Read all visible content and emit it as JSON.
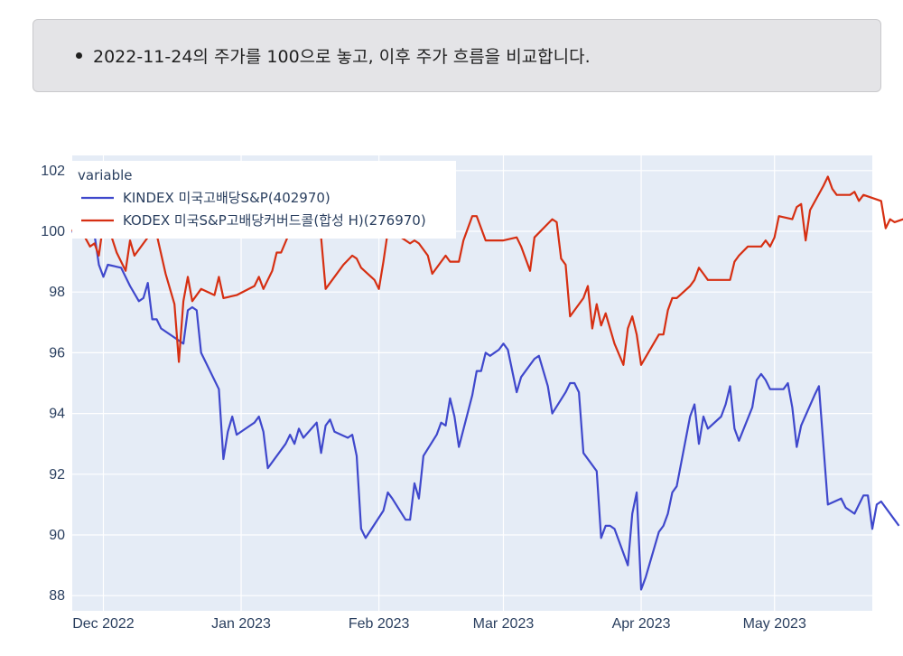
{
  "notice": {
    "text": "2022-11-24의 주가를 100으로 놓고, 이후 주가 흐름을 비교합니다."
  },
  "chart_data": {
    "type": "line",
    "title": "",
    "xlabel": "",
    "ylabel": "",
    "x_range": [
      "2022-11-24",
      "2023-05-23"
    ],
    "ylim": [
      87.5,
      102.5
    ],
    "y_ticks": [
      88,
      90,
      92,
      94,
      96,
      98,
      100,
      102
    ],
    "x_ticks": [
      {
        "date": "2022-12-01",
        "label": "Dec 2022"
      },
      {
        "date": "2023-01-01",
        "label": "Jan 2023"
      },
      {
        "date": "2023-02-01",
        "label": "Feb 2023"
      },
      {
        "date": "2023-03-01",
        "label": "Mar 2023"
      },
      {
        "date": "2023-04-01",
        "label": "Apr 2023"
      },
      {
        "date": "2023-05-01",
        "label": "May 2023"
      }
    ],
    "grid": true,
    "legend": {
      "title": "variable",
      "position": "top-left"
    },
    "series": [
      {
        "name": "KINDEX 미국고배당S&P(402970)",
        "color": "#3f48cc",
        "points": [
          [
            "2022-11-24",
            100.0
          ],
          [
            "2022-11-25",
            99.8
          ],
          [
            "2022-11-28",
            100.1
          ],
          [
            "2022-11-29",
            99.9
          ],
          [
            "2022-11-30",
            98.9
          ],
          [
            "2022-12-01",
            98.5
          ],
          [
            "2022-12-02",
            98.9
          ],
          [
            "2022-12-05",
            98.8
          ],
          [
            "2022-12-07",
            98.2
          ],
          [
            "2022-12-09",
            97.7
          ],
          [
            "2022-12-10",
            97.8
          ],
          [
            "2022-12-11",
            98.3
          ],
          [
            "2022-12-12",
            97.1
          ],
          [
            "2022-12-13",
            97.1
          ],
          [
            "2022-12-14",
            96.8
          ],
          [
            "2022-12-19",
            96.3
          ],
          [
            "2022-12-20",
            97.4
          ],
          [
            "2022-12-21",
            97.5
          ],
          [
            "2022-12-22",
            97.4
          ],
          [
            "2022-12-23",
            96.0
          ],
          [
            "2022-12-27",
            94.8
          ],
          [
            "2022-12-28",
            92.5
          ],
          [
            "2022-12-29",
            93.4
          ],
          [
            "2022-12-30",
            93.9
          ],
          [
            "2022-12-31",
            93.3
          ],
          [
            "2023-01-03",
            93.6
          ],
          [
            "2023-01-04",
            93.7
          ],
          [
            "2023-01-05",
            93.9
          ],
          [
            "2023-01-06",
            93.4
          ],
          [
            "2023-01-07",
            92.2
          ],
          [
            "2023-01-11",
            93.0
          ],
          [
            "2023-01-12",
            93.3
          ],
          [
            "2023-01-13",
            93.0
          ],
          [
            "2023-01-14",
            93.5
          ],
          [
            "2023-01-15",
            93.2
          ],
          [
            "2023-01-18",
            93.7
          ],
          [
            "2023-01-19",
            92.7
          ],
          [
            "2023-01-20",
            93.6
          ],
          [
            "2023-01-21",
            93.8
          ],
          [
            "2023-01-22",
            93.4
          ],
          [
            "2023-01-25",
            93.2
          ],
          [
            "2023-01-26",
            93.3
          ],
          [
            "2023-01-27",
            92.6
          ],
          [
            "2023-01-28",
            90.2
          ],
          [
            "2023-01-29",
            89.9
          ],
          [
            "2023-02-02",
            90.8
          ],
          [
            "2023-02-03",
            91.4
          ],
          [
            "2023-02-04",
            91.2
          ],
          [
            "2023-02-07",
            90.5
          ],
          [
            "2023-02-08",
            90.5
          ],
          [
            "2023-02-09",
            91.7
          ],
          [
            "2023-02-10",
            91.2
          ],
          [
            "2023-02-11",
            92.6
          ],
          [
            "2023-02-14",
            93.3
          ],
          [
            "2023-02-15",
            93.7
          ],
          [
            "2023-02-16",
            93.6
          ],
          [
            "2023-02-17",
            94.5
          ],
          [
            "2023-02-18",
            93.9
          ],
          [
            "2023-02-19",
            92.9
          ],
          [
            "2023-02-22",
            94.6
          ],
          [
            "2023-02-23",
            95.4
          ],
          [
            "2023-02-24",
            95.4
          ],
          [
            "2023-02-25",
            96.0
          ],
          [
            "2023-02-26",
            95.9
          ],
          [
            "2023-02-28",
            96.1
          ],
          [
            "2023-03-01",
            96.3
          ],
          [
            "2023-03-02",
            96.1
          ],
          [
            "2023-03-03",
            95.4
          ],
          [
            "2023-03-04",
            94.7
          ],
          [
            "2023-03-05",
            95.2
          ],
          [
            "2023-03-08",
            95.8
          ],
          [
            "2023-03-09",
            95.9
          ],
          [
            "2023-03-11",
            94.9
          ],
          [
            "2023-03-12",
            94.0
          ],
          [
            "2023-03-15",
            94.7
          ],
          [
            "2023-03-16",
            95.0
          ],
          [
            "2023-03-17",
            95.0
          ],
          [
            "2023-03-18",
            94.7
          ],
          [
            "2023-03-19",
            92.7
          ],
          [
            "2023-03-22",
            92.1
          ],
          [
            "2023-03-23",
            89.9
          ],
          [
            "2023-03-24",
            90.3
          ],
          [
            "2023-03-25",
            90.3
          ],
          [
            "2023-03-26",
            90.2
          ],
          [
            "2023-03-29",
            89.0
          ],
          [
            "2023-03-30",
            90.7
          ],
          [
            "2023-03-31",
            91.4
          ],
          [
            "2023-04-01",
            88.2
          ],
          [
            "2023-04-02",
            88.6
          ],
          [
            "2023-04-05",
            90.1
          ],
          [
            "2023-04-06",
            90.3
          ],
          [
            "2023-04-07",
            90.7
          ],
          [
            "2023-04-08",
            91.4
          ],
          [
            "2023-04-09",
            91.6
          ],
          [
            "2023-04-12",
            93.9
          ],
          [
            "2023-04-13",
            94.3
          ],
          [
            "2023-04-14",
            93.0
          ],
          [
            "2023-04-15",
            93.9
          ],
          [
            "2023-04-16",
            93.5
          ],
          [
            "2023-04-19",
            93.9
          ],
          [
            "2023-04-20",
            94.3
          ],
          [
            "2023-04-21",
            94.9
          ],
          [
            "2023-04-22",
            93.5
          ],
          [
            "2023-04-23",
            93.1
          ],
          [
            "2023-04-26",
            94.2
          ],
          [
            "2023-04-27",
            95.1
          ],
          [
            "2023-04-28",
            95.3
          ],
          [
            "2023-04-29",
            95.1
          ],
          [
            "2023-04-30",
            94.8
          ],
          [
            "2023-05-03",
            94.8
          ],
          [
            "2023-05-04",
            95.0
          ],
          [
            "2023-05-05",
            94.2
          ],
          [
            "2023-05-06",
            92.9
          ],
          [
            "2023-05-07",
            93.6
          ],
          [
            "2023-05-10",
            94.6
          ],
          [
            "2023-05-11",
            94.9
          ],
          [
            "2023-05-13",
            91.0
          ],
          [
            "2023-05-16",
            91.2
          ],
          [
            "2023-05-17",
            90.9
          ],
          [
            "2023-05-18",
            90.8
          ],
          [
            "2023-05-19",
            90.7
          ],
          [
            "2023-05-21",
            91.3
          ],
          [
            "2023-05-22",
            91.3
          ],
          [
            "2023-05-23",
            90.2
          ],
          [
            "2023-05-24",
            91.0
          ],
          [
            "2023-05-25",
            91.1
          ],
          [
            "2023-05-28",
            90.5
          ],
          [
            "2023-05-29",
            90.3
          ]
        ]
      },
      {
        "name": "KODEX 미국S&P고배당커버드콜(합성 H)(276970)",
        "color": "#d62f12",
        "points": [
          [
            "2022-11-24",
            100.0
          ],
          [
            "2022-11-25",
            100.3
          ],
          [
            "2022-11-28",
            99.5
          ],
          [
            "2022-11-29",
            99.6
          ],
          [
            "2022-11-30",
            99.2
          ],
          [
            "2022-12-01",
            100.3
          ],
          [
            "2022-12-02",
            100.2
          ],
          [
            "2022-12-04",
            99.3
          ],
          [
            "2022-12-06",
            98.7
          ],
          [
            "2022-12-07",
            99.7
          ],
          [
            "2022-12-08",
            99.2
          ],
          [
            "2022-12-12",
            100.0
          ],
          [
            "2022-12-13",
            99.9
          ],
          [
            "2022-12-15",
            98.6
          ],
          [
            "2022-12-17",
            97.6
          ],
          [
            "2022-12-18",
            95.7
          ],
          [
            "2022-12-19",
            97.7
          ],
          [
            "2022-12-20",
            98.5
          ],
          [
            "2022-12-21",
            97.7
          ],
          [
            "2022-12-23",
            98.1
          ],
          [
            "2022-12-26",
            97.9
          ],
          [
            "2022-12-27",
            98.5
          ],
          [
            "2022-12-28",
            97.8
          ],
          [
            "2022-12-31",
            97.9
          ],
          [
            "2023-01-04",
            98.2
          ],
          [
            "2023-01-05",
            98.5
          ],
          [
            "2023-01-06",
            98.1
          ],
          [
            "2023-01-08",
            98.7
          ],
          [
            "2023-01-09",
            99.3
          ],
          [
            "2023-01-10",
            99.3
          ],
          [
            "2023-01-12",
            100.0
          ],
          [
            "2023-01-19",
            99.8
          ],
          [
            "2023-01-20",
            98.1
          ],
          [
            "2023-01-24",
            98.9
          ],
          [
            "2023-01-26",
            99.2
          ],
          [
            "2023-01-27",
            99.1
          ],
          [
            "2023-01-28",
            98.8
          ],
          [
            "2023-01-31",
            98.4
          ],
          [
            "2023-02-01",
            98.1
          ],
          [
            "2023-02-02",
            99.0
          ],
          [
            "2023-02-03",
            100.0
          ],
          [
            "2023-02-06",
            99.8
          ],
          [
            "2023-02-08",
            99.6
          ],
          [
            "2023-02-09",
            99.7
          ],
          [
            "2023-02-10",
            99.6
          ],
          [
            "2023-02-12",
            99.2
          ],
          [
            "2023-02-13",
            98.6
          ],
          [
            "2023-02-16",
            99.2
          ],
          [
            "2023-02-17",
            99.0
          ],
          [
            "2023-02-19",
            99.0
          ],
          [
            "2023-02-20",
            99.7
          ],
          [
            "2023-02-22",
            100.5
          ],
          [
            "2023-02-23",
            100.5
          ],
          [
            "2023-02-25",
            99.7
          ],
          [
            "2023-03-01",
            99.7
          ],
          [
            "2023-03-04",
            99.8
          ],
          [
            "2023-03-05",
            99.5
          ],
          [
            "2023-03-07",
            98.7
          ],
          [
            "2023-03-08",
            99.8
          ],
          [
            "2023-03-12",
            100.4
          ],
          [
            "2023-03-13",
            100.3
          ],
          [
            "2023-03-14",
            99.1
          ],
          [
            "2023-03-15",
            98.9
          ],
          [
            "2023-03-16",
            97.2
          ],
          [
            "2023-03-19",
            97.8
          ],
          [
            "2023-03-20",
            98.2
          ],
          [
            "2023-03-21",
            96.8
          ],
          [
            "2023-03-22",
            97.6
          ],
          [
            "2023-03-23",
            96.9
          ],
          [
            "2023-03-24",
            97.3
          ],
          [
            "2023-03-26",
            96.3
          ],
          [
            "2023-03-28",
            95.6
          ],
          [
            "2023-03-29",
            96.8
          ],
          [
            "2023-03-30",
            97.2
          ],
          [
            "2023-03-31",
            96.6
          ],
          [
            "2023-04-01",
            95.6
          ],
          [
            "2023-04-05",
            96.6
          ],
          [
            "2023-04-06",
            96.6
          ],
          [
            "2023-04-07",
            97.4
          ],
          [
            "2023-04-08",
            97.8
          ],
          [
            "2023-04-09",
            97.8
          ],
          [
            "2023-04-12",
            98.2
          ],
          [
            "2023-04-13",
            98.4
          ],
          [
            "2023-04-14",
            98.8
          ],
          [
            "2023-04-15",
            98.6
          ],
          [
            "2023-04-16",
            98.4
          ],
          [
            "2023-04-18",
            98.4
          ],
          [
            "2023-04-21",
            98.4
          ],
          [
            "2023-04-22",
            99.0
          ],
          [
            "2023-04-23",
            99.2
          ],
          [
            "2023-04-25",
            99.5
          ],
          [
            "2023-04-28",
            99.5
          ],
          [
            "2023-04-29",
            99.7
          ],
          [
            "2023-04-30",
            99.5
          ],
          [
            "2023-05-01",
            99.8
          ],
          [
            "2023-05-02",
            100.5
          ],
          [
            "2023-05-05",
            100.4
          ],
          [
            "2023-05-06",
            100.8
          ],
          [
            "2023-05-07",
            100.9
          ],
          [
            "2023-05-08",
            99.7
          ],
          [
            "2023-05-09",
            100.7
          ],
          [
            "2023-05-12",
            101.5
          ],
          [
            "2023-05-13",
            101.8
          ],
          [
            "2023-05-14",
            101.4
          ],
          [
            "2023-05-15",
            101.2
          ],
          [
            "2023-05-18",
            101.2
          ],
          [
            "2023-05-19",
            101.3
          ],
          [
            "2023-05-20",
            101.0
          ],
          [
            "2023-05-21",
            101.2
          ],
          [
            "2023-05-25",
            101.0
          ],
          [
            "2023-05-26",
            100.1
          ],
          [
            "2023-05-27",
            100.4
          ],
          [
            "2023-05-28",
            100.3
          ],
          [
            "2023-06-01",
            100.5
          ]
        ]
      }
    ]
  }
}
